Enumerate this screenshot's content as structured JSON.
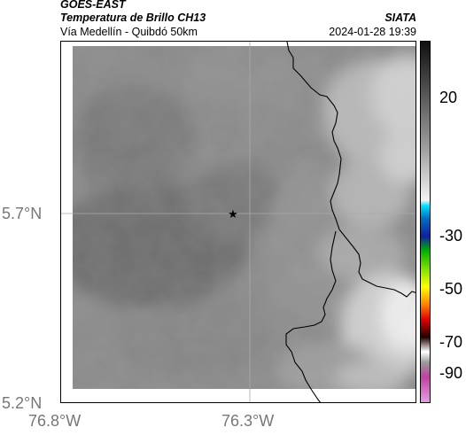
{
  "header": {
    "satellite": "GOES-EAST",
    "product": "Temperatura de Brillo CH13",
    "agency": "SIATA",
    "region": "Vía Medellín - Quibdó 50km",
    "datetime": "2024-01-28 19:39"
  },
  "axes": {
    "lat_ticks": [
      "5.7°N",
      "5.2°N"
    ],
    "lon_ticks": [
      "76.8°W",
      "76.3°W"
    ]
  },
  "colorbar": {
    "labels": [
      "20",
      "-30",
      "-50",
      "-70",
      "-90"
    ]
  },
  "map": {
    "marker_icon": "star-icon",
    "colors": {
      "background_gray": "#7d7d7d",
      "cold_cloud": "#efefef",
      "border_line": "#000000"
    }
  }
}
